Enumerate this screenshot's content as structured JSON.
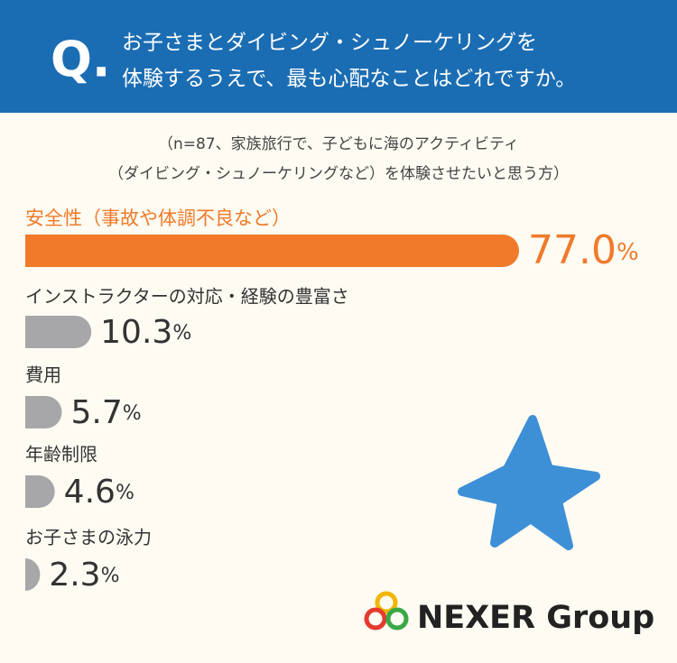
{
  "chart_data": {
    "type": "bar",
    "question_label": "Q.",
    "title": [
      "お子さまとダイビング・シュノーケリングを",
      "体験するうえで、最も心配なことはどれですか。"
    ],
    "subtitle": [
      "（n=87、家族旅行で、子どもに海のアクティビティ",
      "（ダイビング・シュノーケリングなど）を体験させたいと思う方）"
    ],
    "categories": [
      "安全性（事故や体調不良など）",
      "インストラクターの対応・経験の豊富さ",
      "費用",
      "年齢制限",
      "お子さまの泳力"
    ],
    "values": [
      77.0,
      10.3,
      5.7,
      4.6,
      2.3
    ],
    "value_labels": [
      "77.0",
      "10.3",
      "5.7",
      "4.6",
      "2.3"
    ],
    "unit": "%",
    "colors": [
      "#f07a2a",
      "#a7a7aa",
      "#a7a7aa",
      "#a7a7aa",
      "#a7a7aa"
    ]
  },
  "logo": "NEXER Group"
}
